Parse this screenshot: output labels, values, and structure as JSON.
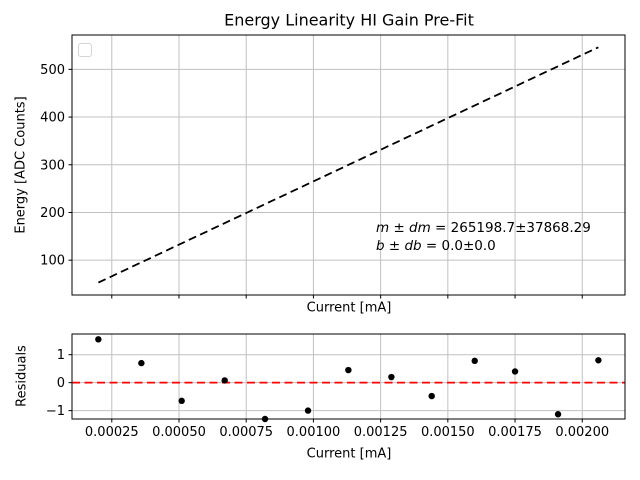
{
  "figure": {
    "background": "#ffffff",
    "grid_color": "#c0c0c0",
    "spine_color": "#000000",
    "text_color": "#000000"
  },
  "chart_data": [
    {
      "type": "line",
      "title": "Energy Linearity HI Gain Pre-Fit",
      "xlabel": "Current [mA]",
      "ylabel": "Energy [ADC Counts]",
      "xlim": [
        0.000102,
        0.002159
      ],
      "ylim": [
        27,
        572
      ],
      "xticks": [
        0.00025,
        0.0005,
        0.00075,
        0.001,
        0.00125,
        0.0015,
        0.00175,
        0.002
      ],
      "xtick_labels": [],
      "yticks": [
        100,
        200,
        300,
        400,
        500
      ],
      "ytick_labels": [
        "100",
        "200",
        "300",
        "400",
        "500"
      ],
      "grid": true,
      "legend": {
        "visible": true,
        "entries": []
      },
      "fit_line": {
        "style": "dashed",
        "color": "#000000",
        "m": 265198.7,
        "b": 0.0,
        "x_start": 0.0002,
        "x_end": 0.00206
      },
      "annotation": {
        "line1_var": "m ± dm",
        "line1_val": " = 265198.7±37868.29",
        "line2_var": "b ± db",
        "line2_val": " = 0.0±0.0"
      }
    },
    {
      "type": "scatter",
      "title": "",
      "xlabel": "Current [mA]",
      "ylabel": "Residuals",
      "xlim": [
        0.000102,
        0.002159
      ],
      "ylim": [
        -1.3,
        1.74
      ],
      "xticks": [
        0.00025,
        0.0005,
        0.00075,
        0.001,
        0.00125,
        0.0015,
        0.00175,
        0.002
      ],
      "xtick_labels": [
        "0.00025",
        "0.00050",
        "0.00075",
        "0.00100",
        "0.00125",
        "0.00150",
        "0.00175",
        "0.00200"
      ],
      "yticks": [
        -1,
        0,
        1
      ],
      "ytick_labels": [
        "−1",
        "0",
        "1"
      ],
      "grid": true,
      "points": {
        "color": "#000000",
        "x": [
          0.0002,
          0.00036,
          0.00051,
          0.00067,
          0.00082,
          0.00098,
          0.00113,
          0.00129,
          0.00144,
          0.0016,
          0.00175,
          0.00191,
          0.00206
        ],
        "y": [
          1.55,
          0.7,
          -0.65,
          0.08,
          -1.3,
          -1.0,
          0.45,
          0.2,
          -0.48,
          0.78,
          0.4,
          -1.13,
          0.8
        ]
      },
      "zero_line": {
        "style": "dashed",
        "color": "#ff0000",
        "y": 0
      }
    }
  ]
}
